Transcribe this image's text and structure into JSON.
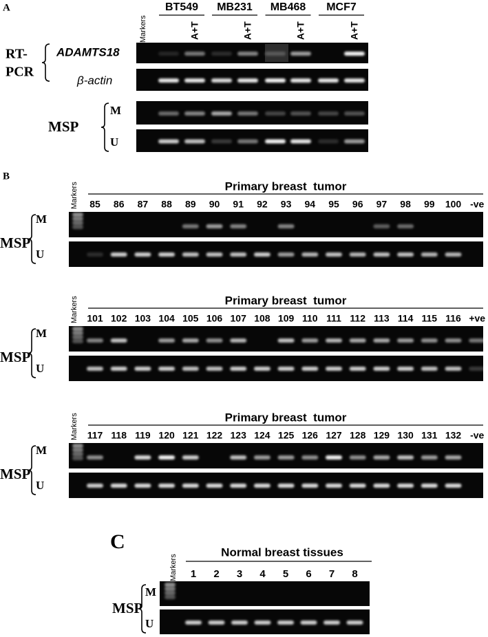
{
  "panel_a": {
    "label": "A",
    "markers": "Markers",
    "cell_lines": [
      "BT549",
      "MB231",
      "MB468",
      "MCF7"
    ],
    "treatments": [
      "A+T",
      "A+T",
      "A+T",
      "A+T"
    ],
    "rt_pcr_label": [
      "RT-",
      "PCR"
    ],
    "genes": [
      "ADAMTS18",
      "β-actin"
    ],
    "msp_label": "MSP",
    "rows": [
      "M",
      "U"
    ]
  },
  "panel_b": {
    "label": "B",
    "gels": [
      {
        "markers": "Markers",
        "title": "Primary breast  tumor",
        "lanes": [
          "85",
          "86",
          "87",
          "88",
          "89",
          "90",
          "91",
          "92",
          "93",
          "94",
          "95",
          "96",
          "97",
          "98",
          "99",
          "100",
          "-ve"
        ],
        "msp_label": "MSP",
        "rows": [
          "M",
          "U"
        ]
      },
      {
        "markers": "Markers",
        "title": "Primary breast  tumor",
        "lanes": [
          "101",
          "102",
          "103",
          "104",
          "105",
          "106",
          "107",
          "108",
          "109",
          "110",
          "111",
          "112",
          "113",
          "114",
          "115",
          "116",
          "+ve"
        ],
        "msp_label": "MSP",
        "rows": [
          "M",
          "U"
        ]
      },
      {
        "markers": "Markers",
        "title": "Primary breast  tumor",
        "lanes": [
          "117",
          "118",
          "119",
          "120",
          "121",
          "122",
          "123",
          "124",
          "125",
          "126",
          "127",
          "128",
          "129",
          "130",
          "131",
          "132",
          "-ve"
        ],
        "msp_label": "MSP",
        "rows": [
          "M",
          "U"
        ]
      }
    ]
  },
  "panel_c": {
    "label": "C",
    "markers": "Markers",
    "title": "Normal breast tissues",
    "lanes": [
      "1",
      "2",
      "3",
      "4",
      "5",
      "6",
      "7",
      "8"
    ],
    "msp_label": "MSP",
    "rows": [
      "M",
      "U"
    ]
  }
}
